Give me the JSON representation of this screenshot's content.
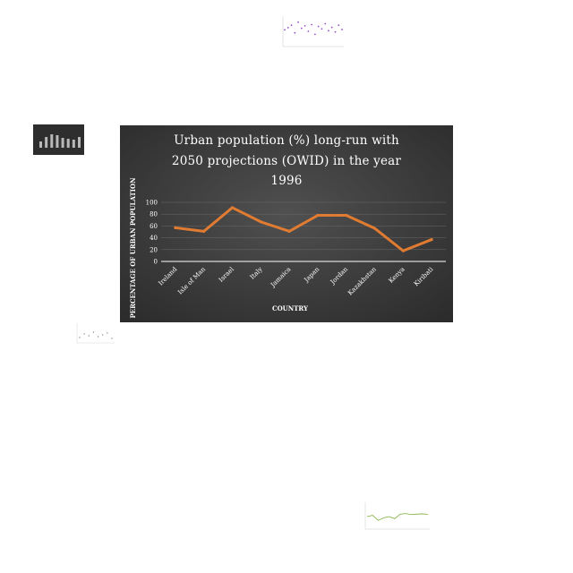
{
  "chart_data": [
    {
      "type": "line",
      "title": "Urban population (%) long-run with 2050 projections (OWID) in the year 1996",
      "title_lines": [
        "Urban population (%) long-run with",
        "2050 projections (OWID) in the year",
        "1996"
      ],
      "xlabel": "COUNTRY",
      "ylabel": "PERCENTAGE OF URBAN POPULATION",
      "categories": [
        "Ireland",
        "Isle of Man",
        "Israel",
        "Italy",
        "Jamaica",
        "Japan",
        "Jordan",
        "Kazakhstan",
        "Kenya",
        "Kiribati"
      ],
      "series": [
        {
          "values": [
            57,
            51,
            91,
            67,
            51,
            78,
            78,
            56,
            18,
            37
          ]
        }
      ],
      "ylim": [
        0,
        100
      ],
      "yticks": [
        0,
        20,
        40,
        60,
        80,
        100
      ],
      "grid": true,
      "colors": {
        "background": "#3b3b3b",
        "line": "#e07b32",
        "text": "#ffffff",
        "grid": "#6a6a6a"
      }
    },
    {
      "type": "scatter",
      "series": [
        {
          "values": [
            0.55,
            0.62,
            0.7,
            0.45,
            0.8,
            0.6,
            0.68,
            0.5,
            0.72,
            0.4,
            0.66,
            0.58,
            0.75,
            0.52,
            0.63,
            0.48,
            0.7,
            0.56
          ]
        }
      ],
      "colors": {
        "marker": "#9b4fc4"
      }
    },
    {
      "type": "bar",
      "series": [
        {
          "values": [
            0.35,
            0.6,
            0.75,
            0.7,
            0.55,
            0.5,
            0.45,
            0.6
          ]
        }
      ],
      "colors": {
        "background": "#2e2e2e",
        "bar": "#b8b8b8"
      }
    },
    {
      "type": "scatter",
      "series": [
        {
          "values": [
            0.3,
            0.5,
            0.4,
            0.6,
            0.35,
            0.45,
            0.55,
            0.25
          ]
        }
      ],
      "colors": {
        "marker": "#888888"
      }
    },
    {
      "type": "line",
      "series": [
        {
          "values": [
            0.5,
            0.55,
            0.35,
            0.45,
            0.5,
            0.42,
            0.6,
            0.62,
            0.58,
            0.6,
            0.61,
            0.59
          ]
        }
      ],
      "colors": {
        "line": "#7cae3c"
      }
    }
  ]
}
